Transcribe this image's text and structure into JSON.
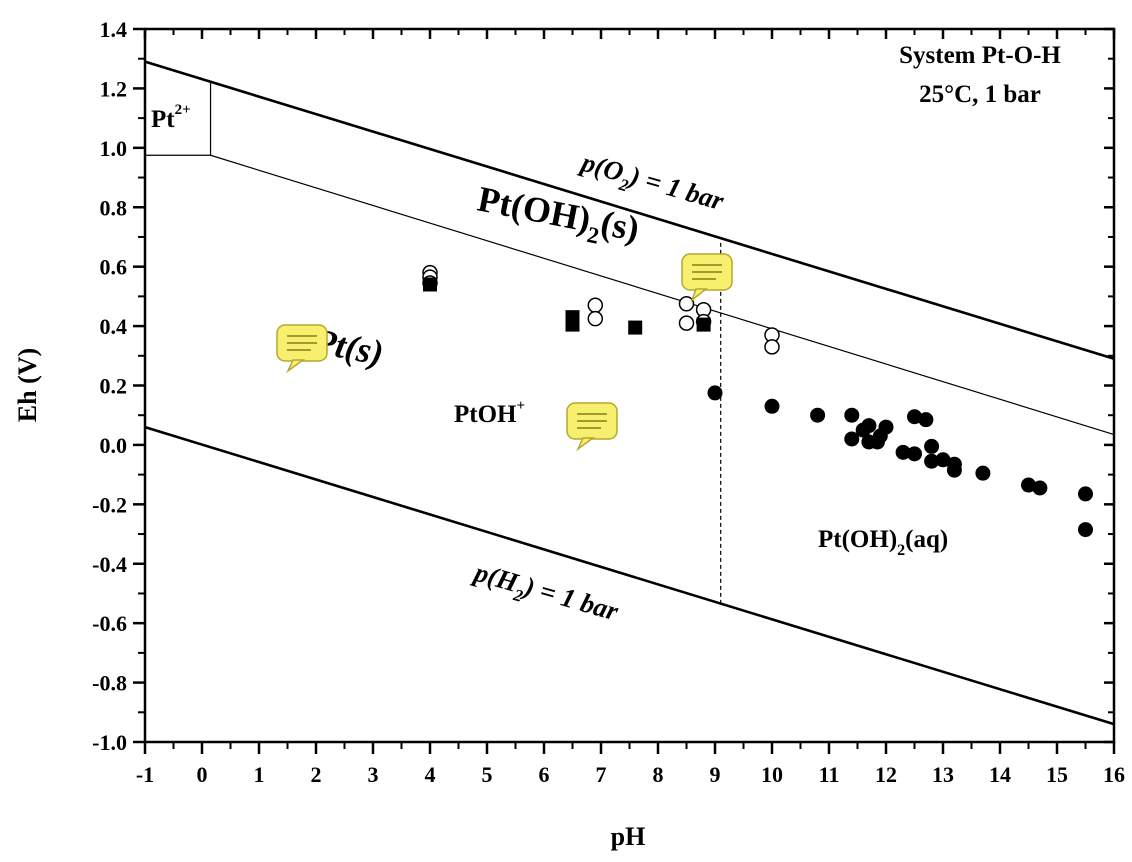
{
  "chart_data": {
    "type": "scatter",
    "title": "System Pt-O-H",
    "subtitle": "25°C, 1 bar",
    "xlabel": "pH",
    "ylabel": "Eh (V)",
    "xlim": [
      -1,
      16
    ],
    "ylim": [
      -1.0,
      1.4
    ],
    "xticks": [
      "-1",
      "0",
      "1",
      "2",
      "3",
      "4",
      "5",
      "6",
      "7",
      "8",
      "9",
      "10",
      "11",
      "12",
      "13",
      "14",
      "15",
      "16"
    ],
    "yticks": [
      "1.4",
      "1.2",
      "1.0",
      "0.8",
      "0.6",
      "0.4",
      "0.2",
      "0.0",
      "-0.2",
      "-0.4",
      "-0.6",
      "-0.8",
      "-1.0"
    ],
    "boundary_lines": [
      {
        "name": "p(O2) = 1 bar",
        "x": [
          -1,
          16
        ],
        "y": [
          1.29,
          0.29
        ],
        "style": "thick"
      },
      {
        "name": "p(H2) = 1 bar",
        "x": [
          -1,
          16
        ],
        "y": [
          0.06,
          -0.94
        ],
        "style": "thick"
      },
      {
        "name": "Pt(s)/Pt(OH)2(s)",
        "x": [
          0.15,
          16
        ],
        "y": [
          0.975,
          0.035
        ],
        "style": "thin"
      },
      {
        "name": "Pt2+ box right",
        "x": [
          0.15,
          0.15
        ],
        "y": [
          0.975,
          1.22
        ],
        "style": "thin"
      },
      {
        "name": "Pt2+ box bottom",
        "x": [
          -1,
          0.15
        ],
        "y": [
          0.975,
          0.975
        ],
        "style": "thin"
      },
      {
        "name": "PtOH+/Pt(OH)2(aq)",
        "x": [
          9.1,
          9.1
        ],
        "y": [
          0.68,
          -0.54
        ],
        "style": "dashed"
      }
    ],
    "series": [
      {
        "marker": "open-circle",
        "points": [
          [
            4.0,
            0.58
          ],
          [
            4.0,
            0.565
          ],
          [
            4.0,
            0.545
          ],
          [
            6.9,
            0.47
          ],
          [
            6.9,
            0.425
          ],
          [
            8.5,
            0.475
          ],
          [
            8.5,
            0.41
          ],
          [
            8.8,
            0.455
          ],
          [
            8.8,
            0.415
          ],
          [
            10.0,
            0.37
          ],
          [
            10.0,
            0.33
          ]
        ]
      },
      {
        "marker": "filled-square",
        "points": [
          [
            4.0,
            0.54
          ],
          [
            6.5,
            0.43
          ],
          [
            6.5,
            0.405
          ],
          [
            7.6,
            0.395
          ],
          [
            8.8,
            0.405
          ]
        ]
      },
      {
        "marker": "filled-circle",
        "points": [
          [
            9.0,
            0.175
          ],
          [
            10.0,
            0.13
          ],
          [
            10.8,
            0.1
          ],
          [
            11.4,
            0.1
          ],
          [
            11.4,
            0.02
          ],
          [
            11.6,
            0.05
          ],
          [
            11.7,
            0.065
          ],
          [
            11.7,
            0.01
          ],
          [
            11.85,
            0.01
          ],
          [
            11.9,
            0.03
          ],
          [
            12.0,
            0.06
          ],
          [
            12.3,
            -0.025
          ],
          [
            12.5,
            0.095
          ],
          [
            12.5,
            -0.03
          ],
          [
            12.7,
            0.085
          ],
          [
            12.8,
            -0.005
          ],
          [
            12.8,
            -0.055
          ],
          [
            13.0,
            -0.05
          ],
          [
            13.2,
            -0.065
          ],
          [
            13.2,
            -0.085
          ],
          [
            13.7,
            -0.095
          ],
          [
            14.5,
            -0.135
          ],
          [
            14.7,
            -0.145
          ],
          [
            15.5,
            -0.165
          ],
          [
            15.5,
            -0.285
          ]
        ]
      }
    ],
    "region_labels": [
      {
        "id": "pt2",
        "base": "Pt",
        "sup": "2+"
      },
      {
        "id": "ptoh2s",
        "base": "Pt(OH)",
        "sub": "2",
        "tail": "(s)"
      },
      {
        "id": "pts",
        "base": "Pt(s)"
      },
      {
        "id": "ptoh",
        "base": "PtOH",
        "sup": "+"
      },
      {
        "id": "ptoh2aq",
        "base": "Pt(OH)",
        "sub": "2",
        "tail": "(aq)"
      }
    ],
    "line_labels": [
      {
        "id": "o2",
        "pre": "p(O",
        "sub": "2",
        "post": ") = 1 bar"
      },
      {
        "id": "h2",
        "pre": "p(H",
        "sub": "2",
        "post": ") = 1 bar"
      }
    ],
    "note_icons": [
      "note-icon",
      "note-icon",
      "note-icon"
    ],
    "colors": {
      "line": "#000000",
      "note_fill": "#f7ef6e"
    }
  }
}
